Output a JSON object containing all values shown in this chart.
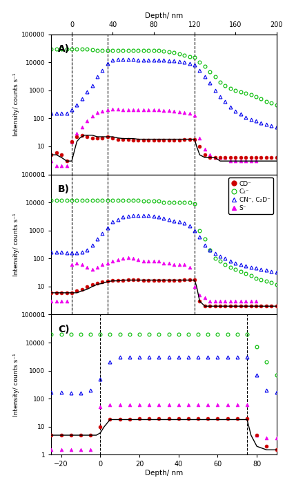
{
  "panel_A": {
    "label": "A)",
    "xmin": -20,
    "xmax": 200,
    "ymin": 1,
    "ymax": 100000,
    "vlines": [
      0,
      35,
      120
    ],
    "green_x": [
      -20,
      -15,
      -10,
      -5,
      0,
      5,
      10,
      15,
      20,
      25,
      30,
      35,
      40,
      45,
      50,
      55,
      60,
      65,
      70,
      75,
      80,
      85,
      90,
      95,
      100,
      105,
      110,
      115,
      120,
      125,
      130,
      135,
      140,
      145,
      150,
      155,
      160,
      165,
      170,
      175,
      180,
      185,
      190,
      195,
      200
    ],
    "green_y": [
      30000,
      30000,
      30000,
      30000,
      30000,
      30000,
      30000,
      30000,
      28000,
      27000,
      27000,
      27000,
      27000,
      27000,
      27000,
      27000,
      27000,
      27000,
      27000,
      27000,
      27000,
      26000,
      25000,
      24000,
      22000,
      20000,
      18000,
      16000,
      15000,
      10000,
      7000,
      4500,
      3000,
      2000,
      1500,
      1200,
      1000,
      900,
      800,
      700,
      600,
      500,
      400,
      350,
      300
    ],
    "blue_x": [
      -20,
      -15,
      -10,
      -5,
      0,
      5,
      10,
      15,
      20,
      25,
      30,
      35,
      40,
      45,
      50,
      55,
      60,
      65,
      70,
      75,
      80,
      85,
      90,
      95,
      100,
      105,
      110,
      115,
      120,
      125,
      130,
      135,
      140,
      145,
      150,
      155,
      160,
      165,
      170,
      175,
      180,
      185,
      190,
      195,
      200
    ],
    "blue_y": [
      150,
      150,
      150,
      150,
      200,
      300,
      500,
      900,
      1500,
      3000,
      5000,
      9000,
      12000,
      13000,
      13000,
      13000,
      12500,
      12000,
      12000,
      12000,
      12000,
      12000,
      12000,
      11500,
      11000,
      10500,
      10000,
      9000,
      8000,
      5000,
      3000,
      1800,
      1000,
      600,
      400,
      250,
      180,
      140,
      110,
      90,
      80,
      70,
      60,
      55,
      50
    ],
    "magenta_x": [
      -20,
      -15,
      -10,
      -5,
      0,
      5,
      10,
      15,
      20,
      25,
      30,
      35,
      40,
      45,
      50,
      55,
      60,
      65,
      70,
      75,
      80,
      85,
      90,
      95,
      100,
      105,
      110,
      115,
      120,
      125,
      130,
      135,
      140,
      145,
      150,
      155,
      160,
      165,
      170,
      175,
      180
    ],
    "magenta_y": [
      3,
      2,
      2,
      2,
      15,
      30,
      50,
      80,
      120,
      160,
      180,
      200,
      210,
      210,
      200,
      200,
      200,
      200,
      200,
      200,
      200,
      200,
      190,
      190,
      180,
      170,
      160,
      150,
      130,
      20,
      8,
      5,
      4,
      4,
      4,
      3,
      3,
      3,
      3,
      3,
      3
    ],
    "red_x": [
      -20,
      -15,
      -10,
      -5,
      0,
      5,
      10,
      15,
      20,
      25,
      30,
      35,
      40,
      45,
      50,
      55,
      60,
      65,
      70,
      75,
      80,
      85,
      90,
      95,
      100,
      105,
      110,
      115,
      120,
      125,
      130,
      135,
      140,
      145,
      150,
      155,
      160,
      165,
      170,
      175,
      180,
      185,
      190,
      195,
      200
    ],
    "red_y": [
      5,
      6,
      5,
      3,
      15,
      22,
      25,
      22,
      20,
      20,
      20,
      22,
      20,
      18,
      18,
      18,
      17,
      17,
      17,
      17,
      17,
      17,
      17,
      17,
      17,
      17,
      18,
      18,
      18,
      10,
      5,
      4,
      4,
      4,
      4,
      4,
      4,
      4,
      4,
      4,
      4,
      4,
      4,
      4,
      4
    ],
    "black_x": [
      -20,
      -15,
      -10,
      -5,
      0,
      3,
      5,
      8,
      10,
      12,
      15,
      18,
      20,
      25,
      30,
      35,
      40,
      45,
      50,
      55,
      60,
      65,
      70,
      75,
      80,
      85,
      90,
      95,
      100,
      105,
      110,
      115,
      118,
      120,
      122,
      125,
      130,
      135,
      140,
      145,
      150,
      155,
      160,
      165,
      170,
      175,
      180,
      185,
      190,
      195,
      200
    ],
    "black_y": [
      5,
      5,
      4,
      3,
      3,
      8,
      15,
      20,
      22,
      25,
      25,
      25,
      25,
      22,
      22,
      22,
      22,
      20,
      19,
      19,
      19,
      18,
      18,
      18,
      18,
      18,
      18,
      18,
      18,
      18,
      18,
      18,
      18,
      18,
      10,
      5,
      4,
      4,
      4,
      3,
      3,
      3,
      3,
      3,
      3,
      3,
      3,
      3,
      3,
      3,
      3
    ]
  },
  "panel_B": {
    "label": "B)",
    "xmin": -20,
    "xmax": 200,
    "ymin": 1,
    "ymax": 100000,
    "vlines": [
      0,
      35,
      120
    ],
    "green_x": [
      -20,
      -15,
      -10,
      -5,
      0,
      5,
      10,
      15,
      20,
      25,
      30,
      35,
      40,
      45,
      50,
      55,
      60,
      65,
      70,
      75,
      80,
      85,
      90,
      95,
      100,
      105,
      110,
      115,
      120,
      125,
      130,
      135,
      140,
      145,
      150,
      155,
      160,
      165,
      170,
      175,
      180,
      185,
      190,
      195,
      200
    ],
    "green_y": [
      12000,
      12000,
      12000,
      12000,
      12000,
      12000,
      12000,
      12000,
      12000,
      12000,
      12000,
      12000,
      12000,
      12000,
      12000,
      12000,
      12000,
      12000,
      11000,
      11000,
      11000,
      11000,
      10000,
      10000,
      10000,
      10000,
      10000,
      10000,
      9000,
      1000,
      500,
      200,
      100,
      80,
      60,
      50,
      40,
      35,
      30,
      25,
      20,
      18,
      16,
      14,
      12
    ],
    "blue_x": [
      -20,
      -15,
      -10,
      -5,
      0,
      5,
      10,
      15,
      20,
      25,
      30,
      35,
      40,
      45,
      50,
      55,
      60,
      65,
      70,
      75,
      80,
      85,
      90,
      95,
      100,
      105,
      110,
      115,
      120,
      125,
      130,
      135,
      140,
      145,
      150,
      155,
      160,
      165,
      170,
      175,
      180,
      185,
      190,
      195,
      200
    ],
    "blue_y": [
      170,
      170,
      170,
      160,
      160,
      160,
      170,
      200,
      300,
      500,
      800,
      1200,
      2000,
      2500,
      3000,
      3200,
      3500,
      3500,
      3500,
      3500,
      3200,
      3000,
      2800,
      2500,
      2200,
      2000,
      1800,
      1500,
      1000,
      600,
      300,
      200,
      150,
      120,
      100,
      80,
      70,
      60,
      55,
      50,
      45,
      40,
      38,
      35,
      32
    ],
    "magenta_x": [
      -20,
      -15,
      -10,
      -5,
      0,
      5,
      10,
      15,
      20,
      25,
      30,
      35,
      40,
      45,
      50,
      55,
      60,
      65,
      70,
      75,
      80,
      85,
      90,
      95,
      100,
      105,
      110,
      115,
      120,
      125,
      130,
      135,
      140,
      145,
      150,
      155,
      160,
      165,
      170,
      175,
      180
    ],
    "magenta_y": [
      3,
      3,
      3,
      3,
      60,
      70,
      60,
      50,
      40,
      50,
      60,
      70,
      80,
      90,
      100,
      110,
      100,
      90,
      80,
      80,
      80,
      80,
      70,
      70,
      60,
      60,
      60,
      50,
      10,
      5,
      4,
      3,
      3,
      3,
      3,
      3,
      3,
      3,
      3,
      3,
      3
    ],
    "red_x": [
      -20,
      -15,
      -10,
      -5,
      0,
      5,
      10,
      15,
      20,
      25,
      30,
      35,
      40,
      45,
      50,
      55,
      60,
      65,
      70,
      75,
      80,
      85,
      90,
      95,
      100,
      105,
      110,
      115,
      120,
      125,
      130,
      135,
      140,
      145,
      150,
      155,
      160,
      165,
      170,
      175,
      180,
      185,
      190,
      195,
      200
    ],
    "red_y": [
      6,
      6,
      6,
      6,
      6,
      7,
      8,
      10,
      12,
      13,
      15,
      16,
      17,
      17,
      17,
      18,
      18,
      18,
      17,
      17,
      17,
      17,
      17,
      17,
      17,
      17,
      18,
      18,
      18,
      3,
      2,
      2,
      2,
      2,
      2,
      2,
      2,
      2,
      2,
      2,
      2,
      2,
      2,
      2,
      2
    ],
    "black_x": [
      -20,
      -10,
      0,
      5,
      10,
      15,
      20,
      25,
      30,
      35,
      40,
      45,
      50,
      55,
      60,
      65,
      70,
      75,
      80,
      85,
      90,
      95,
      100,
      105,
      110,
      115,
      118,
      120,
      122,
      125,
      130,
      135,
      140,
      145,
      150,
      155,
      160,
      165,
      170,
      175,
      180,
      185,
      190,
      195,
      200
    ],
    "black_y": [
      6,
      6,
      6,
      6,
      7,
      8,
      10,
      12,
      13,
      15,
      16,
      16,
      17,
      17,
      17,
      17,
      17,
      17,
      17,
      17,
      17,
      17,
      17,
      17,
      17,
      17,
      17,
      17,
      10,
      3,
      2,
      2,
      2,
      2,
      2,
      2,
      2,
      2,
      2,
      2,
      2,
      2,
      2,
      2,
      2
    ]
  },
  "panel_C": {
    "label": "C)",
    "xmin": -25,
    "xmax": 90,
    "ymin": 1,
    "ymax": 100000,
    "vlines": [
      0,
      75
    ],
    "green_x": [
      -25,
      -20,
      -15,
      -10,
      -5,
      0,
      5,
      10,
      15,
      20,
      25,
      30,
      35,
      40,
      45,
      50,
      55,
      60,
      65,
      70,
      75,
      80,
      85,
      90
    ],
    "green_y": [
      20000,
      20000,
      20000,
      20000,
      20000,
      20000,
      20000,
      20000,
      20000,
      20000,
      20000,
      20000,
      20000,
      20000,
      20000,
      20000,
      20000,
      20000,
      20000,
      20000,
      20000,
      7000,
      2000,
      700
    ],
    "blue_x": [
      -25,
      -20,
      -15,
      -10,
      -5,
      0,
      5,
      10,
      15,
      20,
      25,
      30,
      35,
      40,
      45,
      50,
      55,
      60,
      65,
      70,
      75,
      80,
      85,
      90
    ],
    "blue_y": [
      170,
      170,
      160,
      160,
      200,
      500,
      2000,
      3000,
      3000,
      3000,
      3000,
      3000,
      3000,
      3000,
      3000,
      3000,
      3000,
      3000,
      3000,
      3000,
      3000,
      700,
      200,
      170
    ],
    "magenta_x": [
      -25,
      -20,
      -15,
      -10,
      -5,
      0,
      5,
      10,
      15,
      20,
      25,
      30,
      35,
      40,
      45,
      50,
      55,
      60,
      65,
      70,
      75,
      80,
      85,
      90
    ],
    "magenta_y": [
      1.5,
      1.5,
      1.5,
      1.5,
      1.5,
      50,
      60,
      60,
      60,
      60,
      60,
      60,
      60,
      60,
      60,
      60,
      60,
      60,
      60,
      60,
      60,
      5,
      4,
      4
    ],
    "red_x": [
      -25,
      -20,
      -15,
      -10,
      -5,
      0,
      5,
      10,
      15,
      20,
      25,
      30,
      35,
      40,
      45,
      50,
      55,
      60,
      65,
      70,
      75,
      80,
      85,
      90
    ],
    "red_y": [
      5,
      5,
      5,
      5,
      5,
      10,
      18,
      18,
      18,
      20,
      20,
      20,
      20,
      20,
      20,
      20,
      20,
      20,
      20,
      20,
      20,
      5,
      2,
      1.5
    ],
    "black_x": [
      -25,
      -20,
      -15,
      -10,
      -5,
      -2,
      0,
      2,
      5,
      10,
      15,
      20,
      25,
      30,
      35,
      40,
      45,
      50,
      55,
      60,
      65,
      70,
      73,
      75,
      77,
      80,
      85,
      90
    ],
    "black_y": [
      5,
      5,
      5,
      5,
      5,
      5,
      6,
      10,
      18,
      18,
      18,
      18,
      18,
      18,
      18,
      18,
      18,
      18,
      18,
      18,
      18,
      18,
      18,
      18,
      5,
      2,
      1.5,
      1.5
    ]
  },
  "legend": {
    "CD": "CD⁻",
    "C2": "C₂⁻",
    "CN": "CN⁻, C₂D⁻",
    "S": "S⁻"
  },
  "colors": {
    "green": "#00bb00",
    "blue": "#0000ee",
    "magenta": "#ee00ee",
    "red": "#cc0000",
    "black": "#000000"
  },
  "top_axis_ticks": [
    0,
    40,
    80,
    120,
    160,
    200
  ],
  "top_axis_label": "Depth/ nm",
  "bottom_axis_label": "Depth/ nm",
  "ylabel": "Intensity/ counts s⁻¹",
  "yticks": [
    1,
    10,
    100,
    1000,
    10000,
    100000
  ],
  "yticklabels": [
    "1",
    "10",
    "100",
    "1000",
    "10000",
    "100000"
  ]
}
